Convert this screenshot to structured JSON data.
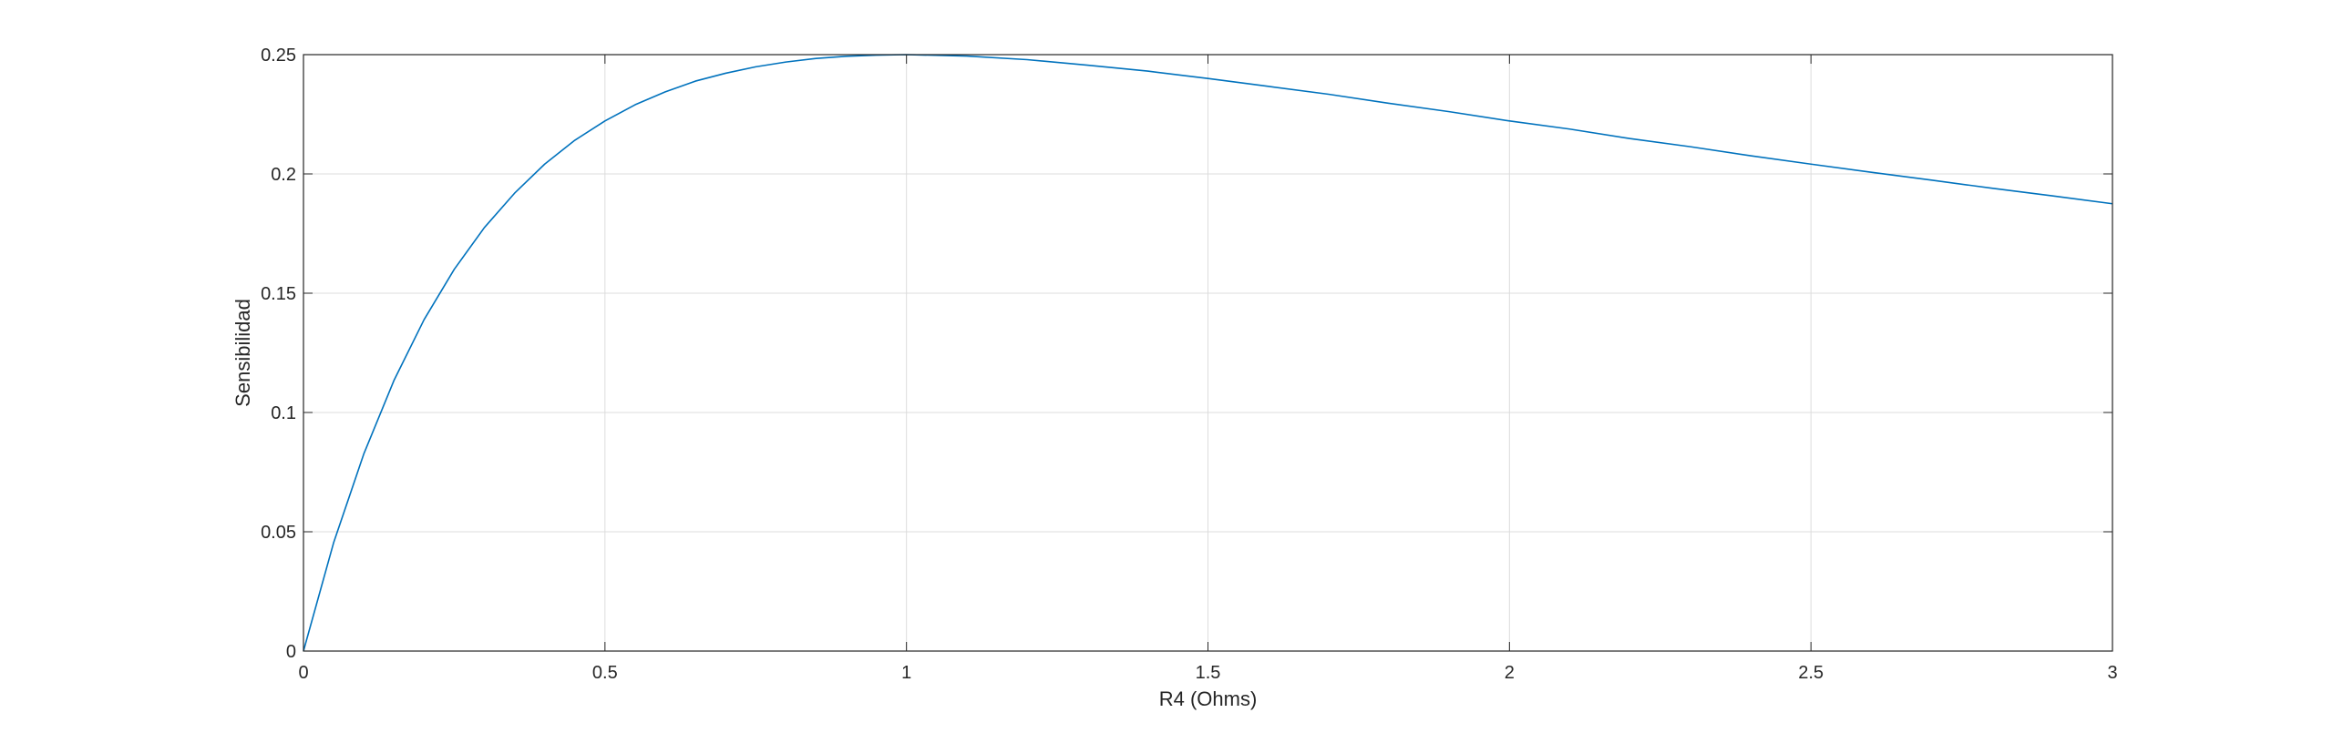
{
  "chart_data": {
    "type": "line",
    "title": "",
    "xlabel": "R4 (Ohms)",
    "ylabel": "Sensibilidad",
    "xlim": [
      0,
      3
    ],
    "ylim": [
      0,
      0.25
    ],
    "xticks": [
      0,
      0.5,
      1,
      1.5,
      2,
      2.5,
      3
    ],
    "xtick_labels": [
      "0",
      "0.5",
      "1",
      "1.5",
      "2",
      "2.5",
      "3"
    ],
    "yticks": [
      0,
      0.05,
      0.1,
      0.15,
      0.2,
      0.25
    ],
    "ytick_labels": [
      "0",
      "0.05",
      "0.1",
      "0.15",
      "0.2",
      "0.25"
    ],
    "grid": true,
    "box": true,
    "legend": "none",
    "series": [
      {
        "color": "#0072BD",
        "x": [
          0,
          0.05,
          0.1,
          0.15,
          0.2,
          0.25,
          0.3,
          0.35,
          0.4,
          0.45,
          0.5,
          0.55,
          0.6,
          0.65,
          0.7,
          0.75,
          0.8,
          0.85,
          0.9,
          0.95,
          1.0,
          1.1,
          1.2,
          1.3,
          1.4,
          1.5,
          1.6,
          1.7,
          1.8,
          1.9,
          2.0,
          2.1,
          2.2,
          2.3,
          2.4,
          2.5,
          2.6,
          2.7,
          2.8,
          2.9,
          3.0
        ],
        "y": [
          0,
          0.0454,
          0.0826,
          0.1134,
          0.1389,
          0.16,
          0.1775,
          0.1919,
          0.2041,
          0.2141,
          0.2222,
          0.229,
          0.2344,
          0.2389,
          0.2422,
          0.2449,
          0.2469,
          0.2484,
          0.2493,
          0.2498,
          0.25,
          0.2494,
          0.2479,
          0.2456,
          0.2431,
          0.24,
          0.2367,
          0.2334,
          0.2296,
          0.2261,
          0.2222,
          0.2188,
          0.2148,
          0.2114,
          0.2076,
          0.2041,
          0.2007,
          0.1974,
          0.194,
          0.1908,
          0.1875
        ]
      }
    ]
  }
}
